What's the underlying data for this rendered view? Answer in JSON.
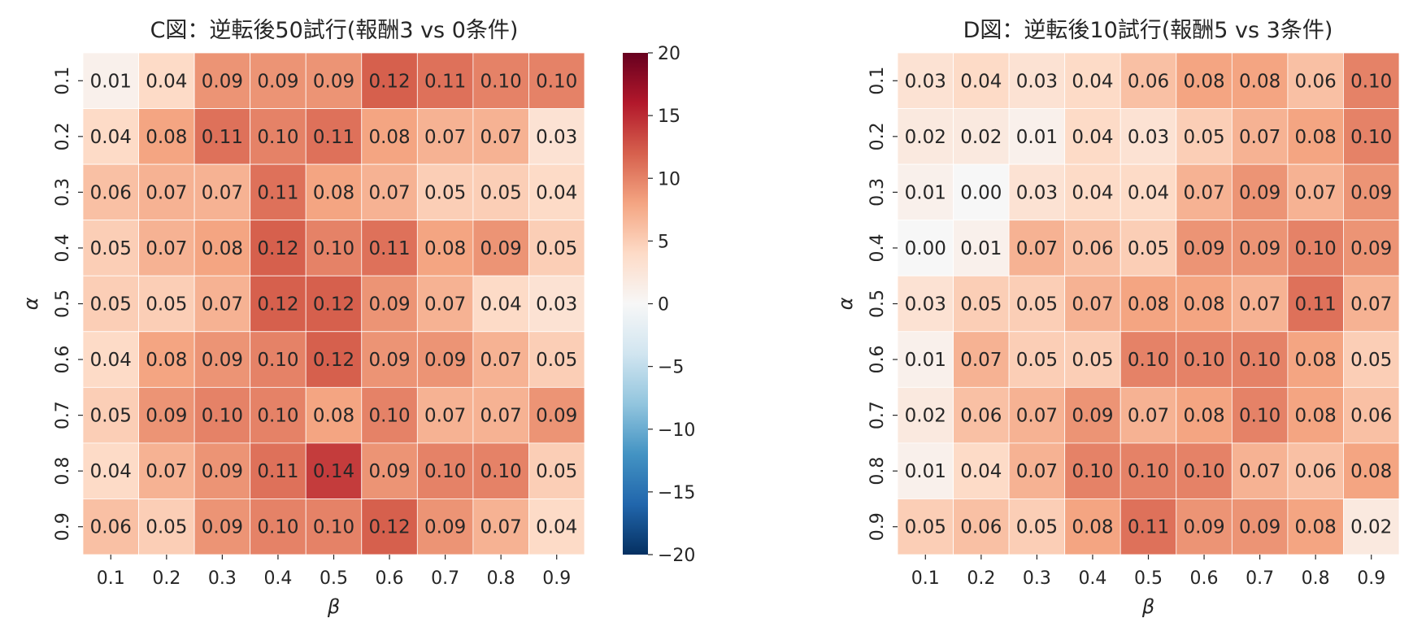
{
  "chart_data": [
    {
      "type": "heatmap",
      "title": "C図：逆転後50試行(報酬3 vs 0条件)",
      "xlabel": "β",
      "ylabel": "α",
      "x_ticks": [
        "0.1",
        "0.2",
        "0.3",
        "0.4",
        "0.5",
        "0.6",
        "0.7",
        "0.8",
        "0.9"
      ],
      "y_ticks": [
        "0.1",
        "0.2",
        "0.3",
        "0.4",
        "0.5",
        "0.6",
        "0.7",
        "0.8",
        "0.9"
      ],
      "values": [
        [
          0.01,
          0.04,
          0.09,
          0.09,
          0.09,
          0.12,
          0.11,
          0.1,
          0.1
        ],
        [
          0.04,
          0.08,
          0.11,
          0.1,
          0.11,
          0.08,
          0.07,
          0.07,
          0.03
        ],
        [
          0.06,
          0.07,
          0.07,
          0.11,
          0.08,
          0.07,
          0.05,
          0.05,
          0.04
        ],
        [
          0.05,
          0.07,
          0.08,
          0.12,
          0.1,
          0.11,
          0.08,
          0.09,
          0.05
        ],
        [
          0.05,
          0.05,
          0.07,
          0.12,
          0.12,
          0.09,
          0.07,
          0.04,
          0.03
        ],
        [
          0.04,
          0.08,
          0.09,
          0.1,
          0.12,
          0.09,
          0.09,
          0.07,
          0.05
        ],
        [
          0.05,
          0.09,
          0.1,
          0.1,
          0.08,
          0.1,
          0.07,
          0.07,
          0.09
        ],
        [
          0.04,
          0.07,
          0.09,
          0.11,
          0.14,
          0.09,
          0.1,
          0.1,
          0.05
        ],
        [
          0.06,
          0.05,
          0.09,
          0.1,
          0.1,
          0.12,
          0.09,
          0.07,
          0.04
        ]
      ],
      "colorbar": {
        "colormap": "RdBu_r",
        "range": [
          -0.2,
          0.2
        ],
        "tick_labels": [
          "20",
          "15",
          "10",
          "5",
          "0",
          "−5",
          "−10",
          "−15",
          "−20"
        ]
      }
    },
    {
      "type": "heatmap",
      "title": "D図：逆転後10試行(報酬5 vs 3条件)",
      "xlabel": "β",
      "ylabel": "α",
      "x_ticks": [
        "0.1",
        "0.2",
        "0.3",
        "0.4",
        "0.5",
        "0.6",
        "0.7",
        "0.8",
        "0.9"
      ],
      "y_ticks": [
        "0.1",
        "0.2",
        "0.3",
        "0.4",
        "0.5",
        "0.6",
        "0.7",
        "0.8",
        "0.9"
      ],
      "values": [
        [
          0.03,
          0.04,
          0.03,
          0.04,
          0.06,
          0.08,
          0.08,
          0.06,
          0.1
        ],
        [
          0.02,
          0.02,
          0.01,
          0.04,
          0.03,
          0.05,
          0.07,
          0.08,
          0.1
        ],
        [
          0.01,
          0.0,
          0.03,
          0.04,
          0.04,
          0.07,
          0.09,
          0.07,
          0.09
        ],
        [
          0.0,
          0.01,
          0.07,
          0.06,
          0.05,
          0.09,
          0.09,
          0.1,
          0.09
        ],
        [
          0.03,
          0.05,
          0.05,
          0.07,
          0.08,
          0.08,
          0.07,
          0.11,
          0.07
        ],
        [
          0.01,
          0.07,
          0.05,
          0.05,
          0.1,
          0.1,
          0.1,
          0.08,
          0.05
        ],
        [
          0.02,
          0.06,
          0.07,
          0.09,
          0.07,
          0.08,
          0.1,
          0.08,
          0.06
        ],
        [
          0.01,
          0.04,
          0.07,
          0.1,
          0.1,
          0.1,
          0.07,
          0.06,
          0.08
        ],
        [
          0.05,
          0.06,
          0.05,
          0.08,
          0.11,
          0.09,
          0.09,
          0.08,
          0.02
        ]
      ],
      "color_range": [
        -0.2,
        0.2
      ]
    }
  ]
}
